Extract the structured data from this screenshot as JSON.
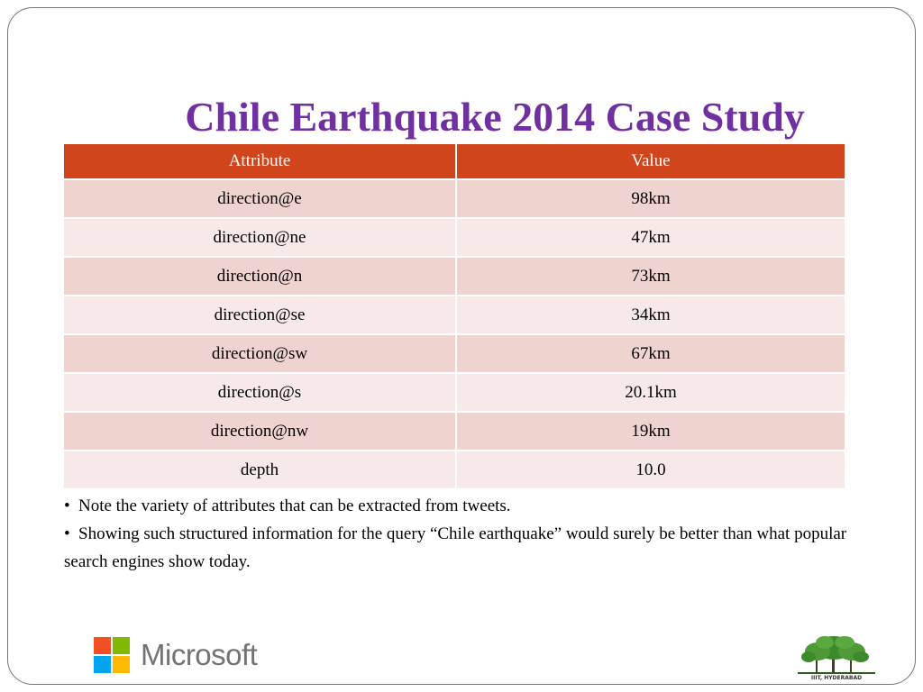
{
  "slide": {
    "title": "Chile Earthquake 2014 Case Study"
  },
  "table": {
    "headers": [
      "Attribute",
      "Value"
    ],
    "rows": [
      {
        "attribute": "direction@e",
        "value": "98km"
      },
      {
        "attribute": "direction@ne",
        "value": "47km"
      },
      {
        "attribute": "direction@n",
        "value": "73km"
      },
      {
        "attribute": "direction@se",
        "value": "34km"
      },
      {
        "attribute": "direction@sw",
        "value": "67km"
      },
      {
        "attribute": "direction@s",
        "value": "20.1km"
      },
      {
        "attribute": "direction@nw",
        "value": "19km"
      },
      {
        "attribute": "depth",
        "value": "10.0"
      }
    ]
  },
  "bullets": [
    "Note the variety of attributes that can be extracted from tweets.",
    "Showing such structured information for the query “Chile earthquake” would surely be better than what popular search engines show today."
  ],
  "logos": {
    "microsoft": {
      "text": "Microsoft",
      "icon": "microsoft-logo-icon",
      "colors": [
        "#f25022",
        "#7fba00",
        "#00a4ef",
        "#ffb900"
      ]
    },
    "iiit": {
      "caption": "IIIT, HYDERABAD",
      "icon": "tree-icon"
    }
  },
  "colors": {
    "title": "#7030a0",
    "table_header": "#d0451b",
    "row_odd": "#efd3cf",
    "row_even": "#f7e9e7"
  }
}
